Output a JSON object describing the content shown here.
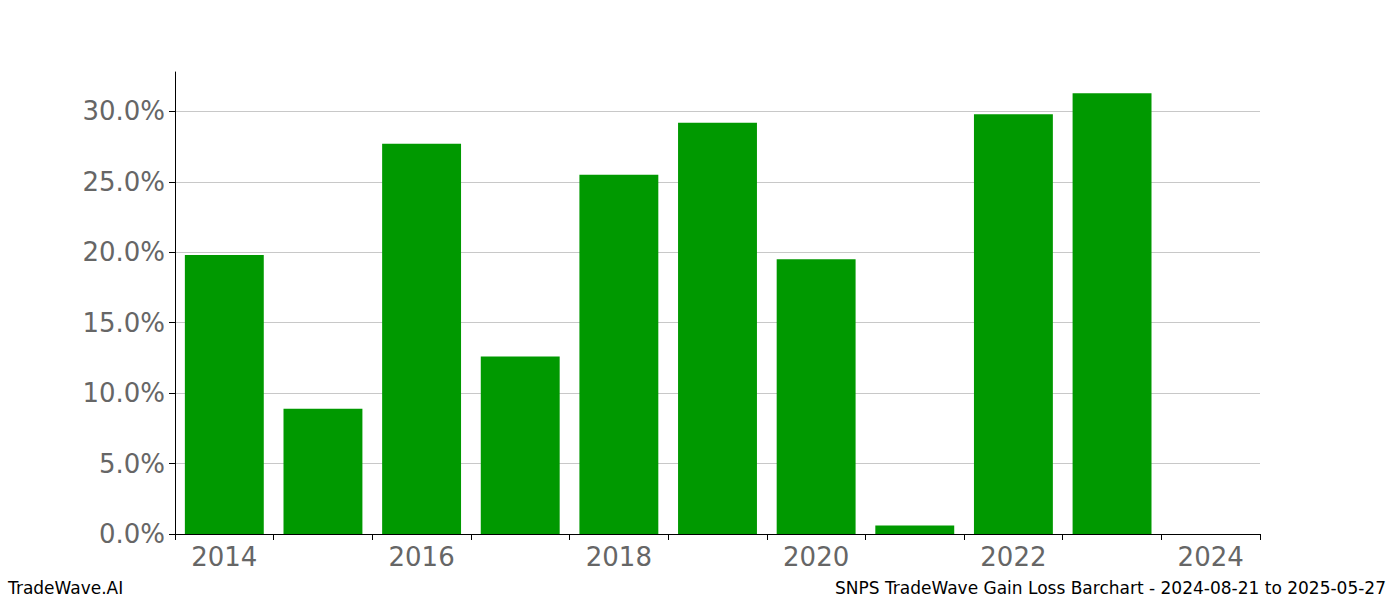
{
  "chart_data": {
    "type": "bar",
    "title": "SNPS TradeWave Gain Loss Barchart - 2024-08-21 to 2025-05-27",
    "annotations": [
      "TradeWave.AI"
    ],
    "categories": [
      "2014",
      null,
      "2016",
      null,
      "2018",
      null,
      "2020",
      null,
      "2022",
      null,
      "2024"
    ],
    "values": [
      19.8,
      8.9,
      27.7,
      12.6,
      25.5,
      29.2,
      19.5,
      0.6,
      29.8,
      31.3,
      null
    ],
    "color": "#009900",
    "ylim": [
      0,
      32.8
    ],
    "yticks": [
      {
        "value": 0,
        "label": "0.0%"
      },
      {
        "value": 5,
        "label": "5.0%"
      },
      {
        "value": 10,
        "label": "10.0%"
      },
      {
        "value": 15,
        "label": "15.0%"
      },
      {
        "value": 20,
        "label": "20.0%"
      },
      {
        "value": 25,
        "label": "25.0%"
      },
      {
        "value": 30,
        "label": "30.0%"
      }
    ],
    "grid": true
  }
}
